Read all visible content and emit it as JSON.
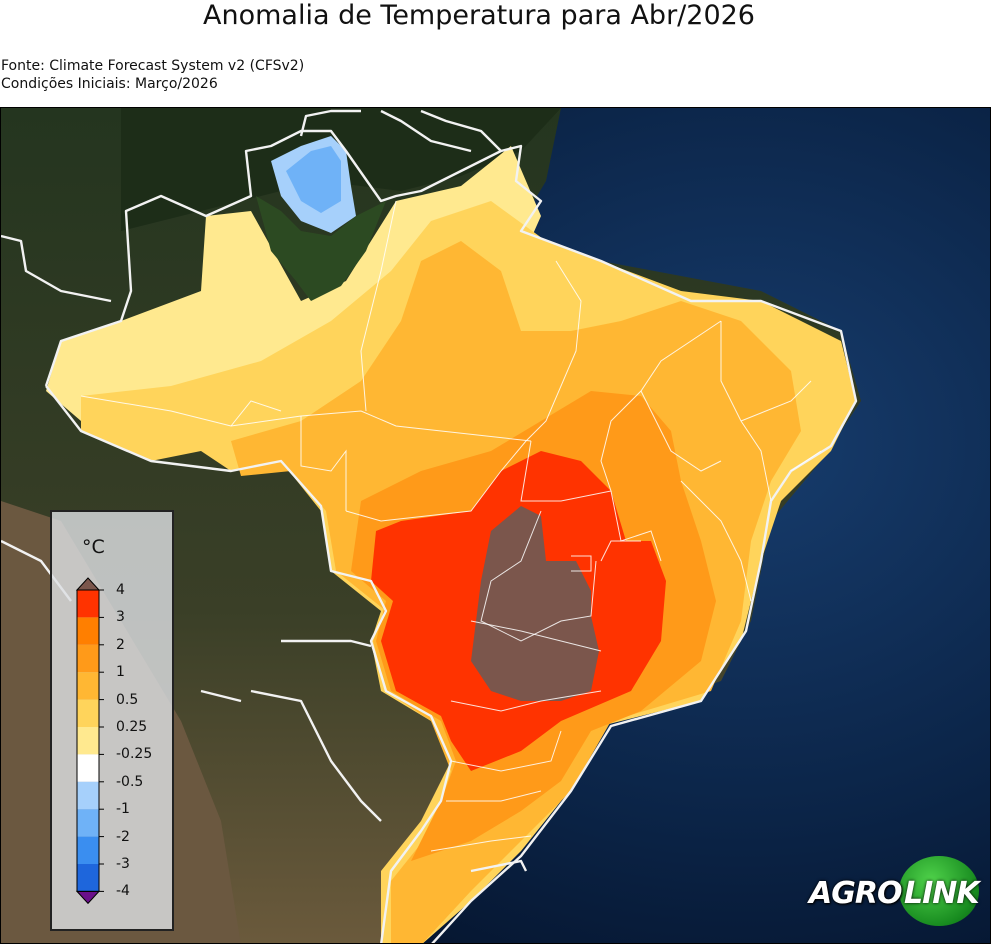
{
  "header": {
    "title": "Anomalia de Temperatura para Abr/2026",
    "source": "Fonte: Climate Forecast System v2 (CFSv2)",
    "initial_conditions": "Condições Iniciais: Março/2026"
  },
  "legend": {
    "unit": "°C",
    "ticks": [
      "4",
      "3",
      "2",
      "1",
      "0.5",
      "0.25",
      "-0.25",
      "-0.5",
      "-1",
      "-2",
      "-3",
      "-4"
    ],
    "colors": [
      "#ff3300",
      "#ff7f00",
      "#ff9a19",
      "#ffb733",
      "#ffd45b",
      "#ffe98f",
      "#ffffff",
      "#a6d0fb",
      "#6fb2f7",
      "#3a8ef0",
      "#1e66dc",
      "#1238c0",
      "#6a0f8a"
    ],
    "over_color": "#7b564c",
    "under_color": "#6a0f8a"
  },
  "brand": {
    "name_left": "AGRO",
    "name_right": "LINK",
    "color": "#1a8a22"
  },
  "map": {
    "ocean_color": "#0c2749",
    "land_color": "#2d3b22",
    "border_color": "#f0f0f0"
  }
}
